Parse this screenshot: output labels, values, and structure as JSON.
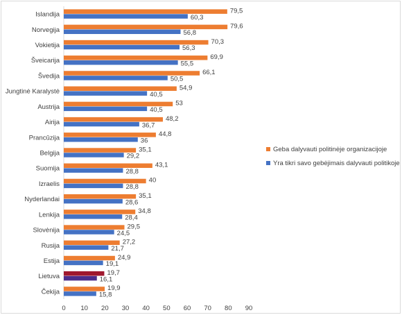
{
  "chart_data": {
    "type": "bar",
    "orientation": "horizontal",
    "title": "",
    "xlabel": "",
    "ylabel": "",
    "xlim": [
      0,
      90
    ],
    "x_ticks": [
      "0",
      "10",
      "20",
      "30",
      "40",
      "50",
      "60",
      "70",
      "80",
      "90"
    ],
    "grid": false,
    "legend_position": "right",
    "categories": [
      "Islandija",
      "Norvegija",
      "Vokietija",
      "Šveicarija",
      "Švedija",
      "Jungtinė Karalystė",
      "Austrija",
      "Airija",
      "Prancūzija",
      "Belgija",
      "Suomija",
      "Izraelis",
      "Nyderlandai",
      "Lenkija",
      "Slovėnija",
      "Rusija",
      "Estija",
      "Lietuva",
      "Čekija"
    ],
    "series": [
      {
        "name": "Geba dalyvauti politinėje organizacijoje",
        "color": "#ED7D31",
        "values": [
          79.5,
          79.6,
          70.3,
          69.9,
          66.1,
          54.9,
          53,
          48.2,
          44.8,
          35.1,
          43.1,
          40,
          35.1,
          34.8,
          29.5,
          27.2,
          24.9,
          19.7,
          19.9
        ],
        "labels": [
          "79,5",
          "79,6",
          "70,3",
          "69,9",
          "66,1",
          "54,9",
          "53",
          "48,2",
          "44,8",
          "35,1",
          "43,1",
          "40",
          "35,1",
          "34,8",
          "29,5",
          "27,2",
          "24,9",
          "19,7",
          "19,9"
        ]
      },
      {
        "name": "Yra tikri savo gebėjimais dalyvauti politikoje",
        "color": "#4472C4",
        "values": [
          60.3,
          56.8,
          56.3,
          55.5,
          50.5,
          40.5,
          40.5,
          36.7,
          36,
          29.2,
          28.8,
          28.8,
          28.6,
          28.4,
          24.5,
          21.7,
          19.1,
          16.1,
          15.8
        ],
        "labels": [
          "60,3",
          "56,8",
          "56,3",
          "55,5",
          "50,5",
          "40,5",
          "40,5",
          "36,7",
          "36",
          "29,2",
          "28,8",
          "28,8",
          "28,6",
          "28,4",
          "24,5",
          "21,7",
          "19,1",
          "16,1",
          "15,8"
        ]
      }
    ],
    "highlight": {
      "category": "Lietuva",
      "colors": [
        "#A0182E",
        "#4C2E8C"
      ]
    }
  }
}
